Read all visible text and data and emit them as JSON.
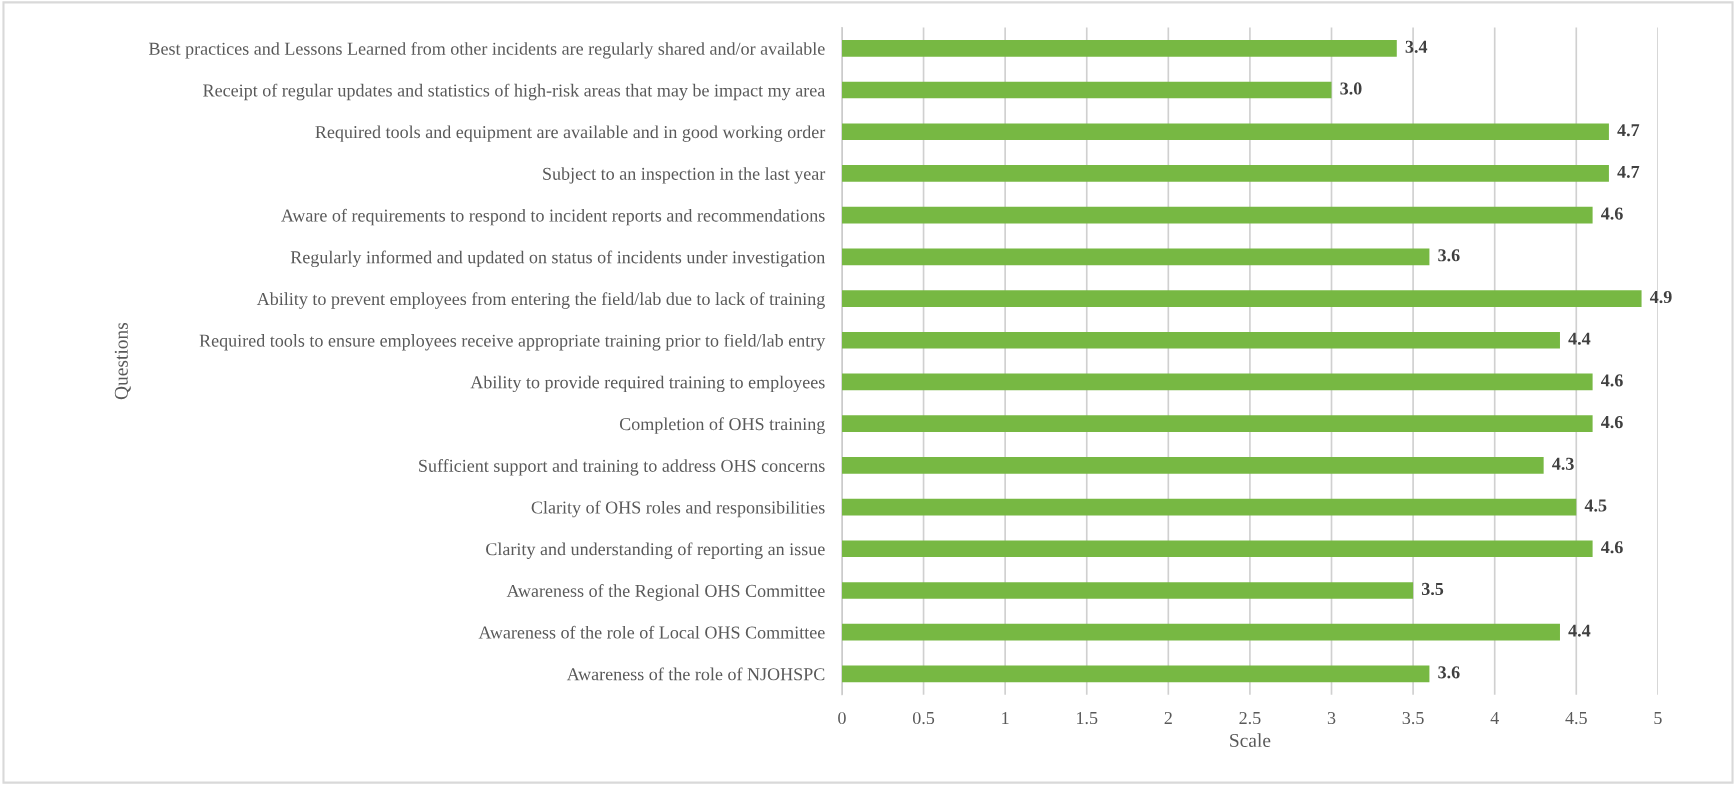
{
  "chart_data": {
    "type": "bar",
    "orientation": "horizontal",
    "categories": [
      "Best practices and Lessons Learned from other incidents are regularly shared and/or available",
      "Receipt of regular updates and statistics of high-risk areas that may be impact my area",
      "Required tools and equipment are available and in good working order",
      "Subject to an inspection in the last year",
      "Aware of requirements to respond to incident reports and recommendations",
      "Regularly informed and updated on status of incidents under investigation",
      "Ability to prevent employees from entering the field/lab due to lack of training",
      "Required tools to ensure employees receive appropriate training prior to field/lab entry",
      "Ability to provide required training to employees",
      "Completion of OHS training",
      "Sufficient support and training to address OHS concerns",
      "Clarity of OHS roles and responsibilities",
      "Clarity and understanding of reporting an issue",
      "Awareness of the Regional OHS Committee",
      "Awareness of the role of Local OHS Committee",
      "Awareness of the role of NJOHSPC"
    ],
    "values": [
      3.4,
      3.0,
      4.7,
      4.7,
      4.6,
      3.6,
      4.9,
      4.4,
      4.6,
      4.6,
      4.3,
      4.5,
      4.6,
      3.5,
      4.4,
      3.6
    ],
    "value_labels": [
      "3.4",
      "3.0",
      "4.7",
      "4.7",
      "4.6",
      "3.6",
      "4.9",
      "4.4",
      "4.6",
      "4.6",
      "4.3",
      "4.5",
      "4.6",
      "3.5",
      "4.4",
      "3.6"
    ],
    "color": "#77b843",
    "xlabel": "Scale",
    "ylabel": "Questions",
    "xlim": [
      0,
      5
    ],
    "xticks": [
      0,
      0.5,
      1,
      1.5,
      2,
      2.5,
      3,
      3.5,
      4,
      4.5,
      5
    ],
    "grid": "x",
    "legend": false
  }
}
